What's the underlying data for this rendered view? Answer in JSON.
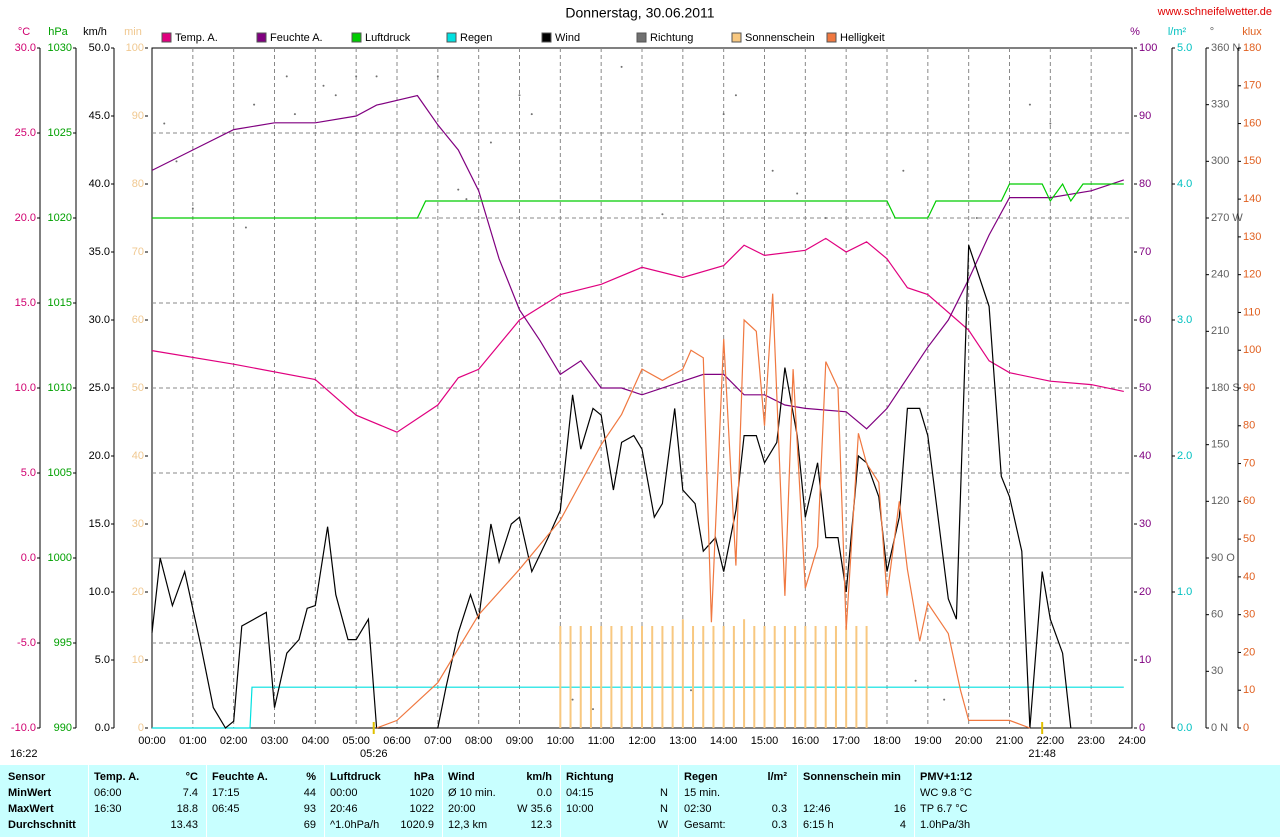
{
  "chart_data": {
    "type": "line",
    "title": "Donnerstag, 30.06.2011",
    "source": "www.schneifelwetter.de",
    "xlim": [
      0,
      24
    ],
    "xticks": [
      {
        "value": 0,
        "label": "00:00"
      },
      {
        "value": 1,
        "label": "01:00"
      },
      {
        "value": 2,
        "label": "02:00"
      },
      {
        "value": 3,
        "label": "03:00"
      },
      {
        "value": 4,
        "label": "04:00"
      },
      {
        "value": 5,
        "label": "05:00"
      },
      {
        "value": 6,
        "label": "06:00"
      },
      {
        "value": 7,
        "label": "07:00"
      },
      {
        "value": 8,
        "label": "08:00"
      },
      {
        "value": 9,
        "label": "09:00"
      },
      {
        "value": 10,
        "label": "10:00"
      },
      {
        "value": 11,
        "label": "11:00"
      },
      {
        "value": 12,
        "label": "12:00"
      },
      {
        "value": 13,
        "label": "13:00"
      },
      {
        "value": 14,
        "label": "14:00"
      },
      {
        "value": 15,
        "label": "15:00"
      },
      {
        "value": 16,
        "label": "16:00"
      },
      {
        "value": 17,
        "label": "17:00"
      },
      {
        "value": 18,
        "label": "18:00"
      },
      {
        "value": 19,
        "label": "19:00"
      },
      {
        "value": 20,
        "label": "20:00"
      },
      {
        "value": 21,
        "label": "21:00"
      },
      {
        "value": 22,
        "label": "22:00"
      },
      {
        "value": 23,
        "label": "23:00"
      },
      {
        "value": 24,
        "label": "24:00"
      }
    ],
    "grid": true,
    "axes": [
      {
        "label": "°C",
        "color": "#d00070",
        "lim": [
          -10,
          30
        ],
        "ticks": [
          {
            "value": -10,
            "label": "-10.0"
          },
          {
            "value": -5,
            "label": "-5.0"
          },
          {
            "value": 0,
            "label": "0.0"
          },
          {
            "value": 5,
            "label": "5.0"
          },
          {
            "value": 10,
            "label": "10.0"
          },
          {
            "value": 15,
            "label": "15.0"
          },
          {
            "value": 20,
            "label": "20.0"
          },
          {
            "value": 25,
            "label": "25.0"
          },
          {
            "value": 30,
            "label": "30.0"
          }
        ]
      },
      {
        "label": "hPa",
        "color": "#00a000",
        "lim": [
          990,
          1030
        ],
        "ticks": [
          990,
          995,
          1000,
          1005,
          1010,
          1015,
          1020,
          1025,
          1030
        ]
      },
      {
        "label": "km/h",
        "color": "#000000",
        "lim": [
          0,
          50
        ],
        "ticks": [
          {
            "value": 0,
            "label": "0.0"
          },
          {
            "value": 5,
            "label": "5.0"
          },
          {
            "value": 10,
            "label": "10.0"
          },
          {
            "value": 15,
            "label": "15.0"
          },
          {
            "value": 20,
            "label": "20.0"
          },
          {
            "value": 25,
            "label": "25.0"
          },
          {
            "value": 30,
            "label": "30.0"
          },
          {
            "value": 35,
            "label": "35.0"
          },
          {
            "value": 40,
            "label": "40.0"
          },
          {
            "value": 45,
            "label": "45.0"
          },
          {
            "value": 50,
            "label": "50.0"
          }
        ]
      },
      {
        "label": "min",
        "color": "#f0c890",
        "lim": [
          0,
          100
        ],
        "ticks": [
          0,
          10,
          20,
          30,
          40,
          50,
          60,
          70,
          80,
          90,
          100
        ]
      },
      {
        "label": "%",
        "color": "#800080",
        "lim": [
          0,
          100
        ],
        "ticks": [
          0,
          10,
          20,
          30,
          40,
          50,
          60,
          70,
          80,
          90,
          100
        ]
      },
      {
        "label": "l/m²",
        "color": "#00c0c0",
        "lim": [
          0,
          5
        ],
        "ticks": [
          {
            "value": 0,
            "label": "0.0"
          },
          {
            "value": 1,
            "label": "1.0"
          },
          {
            "value": 2,
            "label": "2.0"
          },
          {
            "value": 3,
            "label": "3.0"
          },
          {
            "value": 4,
            "label": "4.0"
          },
          {
            "value": 5,
            "label": "5.0"
          }
        ]
      },
      {
        "label": "°",
        "color": "#606060",
        "lim": [
          0,
          360
        ],
        "ticks": [
          {
            "value": 0,
            "label": "0 N"
          },
          30,
          60,
          {
            "value": 90,
            "label": "90 O"
          },
          120,
          150,
          {
            "value": 180,
            "label": "180 S"
          },
          210,
          240,
          {
            "value": 270,
            "label": "270 W"
          },
          300,
          330,
          {
            "value": 360,
            "label": "360 N"
          }
        ]
      },
      {
        "label": "klux",
        "color": "#e06020",
        "lim": [
          0,
          180
        ],
        "ticks": [
          0,
          10,
          20,
          30,
          40,
          50,
          60,
          70,
          80,
          90,
          100,
          110,
          120,
          130,
          140,
          150,
          160,
          170,
          180
        ]
      }
    ],
    "series": [
      {
        "name": "Temp. A.",
        "color": "#e0007f",
        "axis": 0,
        "kind": "line",
        "x": [
          0,
          2,
          4,
          5,
          6,
          7,
          7.5,
          8,
          9,
          10,
          11,
          12,
          13,
          14,
          14.5,
          15,
          16,
          16.5,
          17,
          17.5,
          18,
          18.5,
          19,
          20,
          20.5,
          21,
          22,
          23,
          23.8
        ],
        "values": [
          12.2,
          11.4,
          10.5,
          8.4,
          7.4,
          9,
          10.6,
          11.1,
          14,
          15.5,
          16.1,
          17.1,
          16.5,
          17.2,
          18.4,
          17.8,
          18.1,
          18.8,
          18,
          18.6,
          17.6,
          15.9,
          15.5,
          13.4,
          11.6,
          10.9,
          10.4,
          10.2,
          9.8
        ]
      },
      {
        "name": "Feuchte A.",
        "color": "#800080",
        "axis": 4,
        "kind": "line",
        "x": [
          0,
          1,
          2,
          3,
          4,
          5,
          5.5,
          6.5,
          7,
          7.5,
          8,
          8.5,
          9,
          9.5,
          10,
          10.5,
          11,
          11.5,
          12,
          13,
          13.5,
          14,
          14.5,
          15,
          15.5,
          16,
          17,
          17.5,
          18,
          18.5,
          19,
          19.5,
          20,
          20.5,
          21,
          22,
          23,
          23.8
        ],
        "values": [
          82,
          85,
          88,
          89,
          89,
          90,
          91.6,
          93,
          88.7,
          85,
          79,
          69,
          61.5,
          57,
          52,
          54,
          50,
          50,
          49,
          51,
          52,
          52,
          49,
          49,
          47.5,
          47,
          46.5,
          44,
          47,
          51.5,
          56,
          60,
          66,
          72.5,
          78,
          78,
          79,
          80.6
        ]
      },
      {
        "name": "Luftdruck",
        "color": "#00cc00",
        "axis": 1,
        "kind": "line",
        "x": [
          0,
          6.5,
          6.7,
          18,
          18.2,
          19,
          19.2,
          20.8,
          21,
          21.8,
          22,
          22.3,
          22.5,
          22.8,
          23,
          23.8
        ],
        "values": [
          1020,
          1020,
          1021,
          1021,
          1020,
          1020,
          1021,
          1021,
          1022,
          1022,
          1021,
          1022,
          1021,
          1022,
          1022,
          1022
        ]
      },
      {
        "name": "Regen",
        "color": "#00e0e0",
        "axis": 5,
        "kind": "line",
        "x": [
          0,
          2.4,
          2.45,
          23.8
        ],
        "values": [
          0,
          0,
          0.3,
          0.3
        ]
      },
      {
        "name": "Wind",
        "color": "#000000",
        "axis": 2,
        "kind": "line",
        "x": [
          0,
          0.2,
          0.5,
          0.8,
          1.2,
          1.5,
          1.8,
          2,
          2.2,
          2.8,
          3,
          3.3,
          3.6,
          3.8,
          4,
          4.3,
          4.5,
          4.8,
          5,
          5.3,
          5.5,
          6,
          7,
          7.2,
          7.5,
          7.8,
          8,
          8.3,
          8.5,
          8.8,
          9,
          9.3,
          9.7,
          10,
          10.3,
          10.5,
          10.8,
          11,
          11.3,
          11.5,
          11.8,
          12,
          12.3,
          12.5,
          12.8,
          13,
          13.3,
          13.5,
          13.8,
          14,
          14.3,
          14.5,
          14.8,
          15,
          15.3,
          15.5,
          15.8,
          16,
          16.3,
          16.5,
          16.8,
          17,
          17.3,
          17.5,
          17.8,
          18,
          18.3,
          18.5,
          18.8,
          19,
          19.5,
          19.7,
          20,
          20.5,
          20.8,
          21,
          21.3,
          21.5,
          21.8,
          22,
          22.3,
          22.5
        ],
        "values": [
          7,
          12.5,
          9,
          11.5,
          6,
          1.5,
          0,
          0.5,
          7.5,
          8.5,
          1.5,
          5.5,
          6.5,
          8.8,
          9,
          14.8,
          9.8,
          6.5,
          6.5,
          8,
          0,
          0,
          0,
          3,
          7,
          9.8,
          8,
          15,
          12.2,
          15,
          15.5,
          11.5,
          14,
          16,
          24.5,
          20.5,
          23.5,
          23,
          17.5,
          21,
          21.5,
          20.5,
          15.5,
          16.5,
          23.5,
          17.5,
          16.5,
          13,
          14,
          11.5,
          16,
          21.5,
          21.5,
          19.5,
          21,
          26.5,
          21.5,
          15.5,
          19.5,
          14,
          14,
          10,
          20,
          19.5,
          17,
          11.5,
          15.5,
          23.5,
          23.5,
          21.5,
          9.5,
          8,
          35.5,
          31,
          18.5,
          17,
          13,
          0,
          11.5,
          8,
          5.5,
          0
        ]
      },
      {
        "name": "Richtung",
        "color": "#707070",
        "axis": 6,
        "kind": "scatter",
        "x": [
          0.3,
          0.6,
          1,
          2.3,
          2.5,
          3.3,
          3.5,
          4.2,
          4.5,
          5,
          5.5,
          7,
          7.5,
          7.7,
          8.3,
          9,
          9.3,
          10.3,
          10.8,
          11.5,
          12.5,
          13.2,
          14,
          14.3,
          15.2,
          15.8,
          16.5,
          18.4,
          18.7,
          19.4,
          20.2,
          21.5,
          22
        ],
        "values": [
          320,
          300,
          275,
          265,
          330,
          345,
          325,
          340,
          335,
          345,
          345,
          345,
          285,
          280,
          310,
          335,
          325,
          15,
          10,
          350,
          272,
          20,
          325,
          335,
          295,
          283,
          270,
          295,
          25,
          15,
          270,
          330,
          320
        ]
      },
      {
        "name": "Sonnenschein",
        "color": "#f8c880",
        "axis": 3,
        "kind": "bars",
        "x": [
          10,
          10.25,
          10.5,
          10.75,
          11,
          11.25,
          11.5,
          11.75,
          12,
          12.25,
          12.5,
          12.75,
          13,
          13.25,
          13.5,
          13.75,
          14,
          14.25,
          14.5,
          14.75,
          15,
          15.25,
          15.5,
          15.75,
          16,
          16.25,
          16.5,
          16.75,
          17,
          17.25,
          17.5
        ],
        "values": [
          15,
          15,
          15,
          15,
          15,
          15,
          15,
          15,
          15,
          15,
          15,
          15,
          16,
          15,
          15,
          15,
          15,
          15,
          16,
          15,
          15,
          15,
          15,
          15,
          15,
          15,
          15,
          15,
          15,
          15,
          15
        ]
      },
      {
        "name": "Helligkeit",
        "color": "#f07840",
        "axis": 7,
        "kind": "line",
        "x": [
          5.5,
          6,
          7,
          8,
          9,
          10,
          10.5,
          11,
          11.5,
          12,
          12.5,
          13,
          13.2,
          13.5,
          13.7,
          14,
          14.3,
          14.5,
          14.8,
          15,
          15.2,
          15.5,
          15.7,
          16,
          16.3,
          16.5,
          16.8,
          17,
          17.3,
          17.5,
          17.8,
          18,
          18.3,
          18.5,
          18.8,
          19,
          19.5,
          19.8,
          20,
          21,
          21.5
        ],
        "values": [
          0,
          2,
          12,
          30,
          42,
          55,
          65,
          75,
          83,
          95,
          92,
          95,
          100,
          98,
          28,
          103,
          43,
          108,
          105,
          80,
          115,
          35,
          95,
          37,
          48,
          97,
          90,
          26,
          78,
          70,
          65,
          35,
          60,
          42,
          23,
          33,
          25,
          10,
          2,
          2,
          0
        ]
      }
    ],
    "annotations": {
      "sunrise": {
        "x": 5.43,
        "label": "05:26"
      },
      "sunset": {
        "x": 21.8,
        "label": "21:48"
      },
      "corner": "16:22"
    }
  },
  "table": {
    "columns": [
      {
        "title": "Sensor"
      },
      {
        "title": "Temp. A.",
        "unit": "°C"
      },
      {
        "title": "Feuchte A.",
        "unit": "%"
      },
      {
        "title": "Luftdruck",
        "unit": "hPa"
      },
      {
        "title": "Wind",
        "unit": "km/h"
      },
      {
        "title": "Richtung"
      },
      {
        "title": "Regen",
        "unit": "l/m²"
      },
      {
        "title": "Sonnenschein min"
      },
      {
        "title": "PMV+1:12"
      }
    ],
    "rows": [
      {
        "label": "MinWert",
        "cells": [
          {
            "time": "06:00",
            "value": "7.4"
          },
          {
            "time": "17:15",
            "value": "44"
          },
          {
            "time": "00:00",
            "value": "1020"
          },
          {
            "time": "Ø 10 min.",
            "value": "0.0"
          },
          {
            "time": "04:15",
            "value": "N"
          },
          {
            "time": "15 min."
          },
          {},
          {
            "time": "WC 9.8 °C"
          }
        ]
      },
      {
        "label": "MaxWert",
        "cells": [
          {
            "time": "16:30",
            "value": "18.8"
          },
          {
            "time": "06:45",
            "value": "93"
          },
          {
            "time": "20:46",
            "value": "1022"
          },
          {
            "time": "20:00",
            "value": "W 35.6"
          },
          {
            "time": "10:00",
            "value": "N"
          },
          {
            "time": "02:30",
            "value": "0.3"
          },
          {
            "time": "12:46",
            "value": "16"
          },
          {
            "time": "TP 6.7 °C"
          }
        ]
      },
      {
        "label": "Durchschnitt",
        "cells": [
          {
            "value": "13.43"
          },
          {
            "value": "69"
          },
          {
            "time": "^1.0hPa/h",
            "value": "1020.9"
          },
          {
            "time": "12,3 km",
            "value": "12.3"
          },
          {
            "value": "W"
          },
          {
            "time": "Gesamt:",
            "value": "0.3"
          },
          {
            "time": "6:15 h",
            "value": "4"
          },
          {
            "time": "1.0hPa/3h"
          }
        ]
      }
    ]
  }
}
